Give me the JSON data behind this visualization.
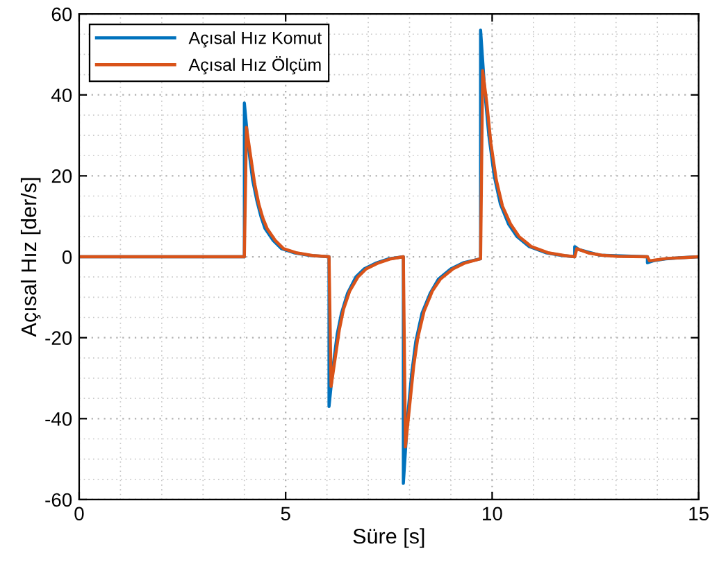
{
  "chart_data": {
    "type": "line",
    "xlabel": "Süre [s]",
    "ylabel": "Açısal Hız [der/s]",
    "xlim": [
      0,
      15
    ],
    "ylim": [
      -60,
      60
    ],
    "xticks": [
      0,
      5,
      10,
      15
    ],
    "yticks": [
      -60,
      -40,
      -20,
      0,
      20,
      40,
      60
    ],
    "grid": true,
    "legend": "top left",
    "line_style": "solid",
    "marker": "none",
    "series": [
      {
        "name": "Açısal Hız Komut",
        "color": "#0072bd",
        "x": [
          0,
          4.0,
          4.0,
          4.1,
          4.2,
          4.3,
          4.4,
          4.5,
          4.7,
          4.9,
          5.2,
          5.6,
          6.05,
          6.05,
          6.15,
          6.25,
          6.35,
          6.5,
          6.7,
          6.9,
          7.2,
          7.5,
          7.85,
          7.85,
          7.95,
          8.05,
          8.15,
          8.3,
          8.5,
          8.7,
          9.0,
          9.3,
          9.72,
          9.72,
          9.82,
          9.92,
          10.05,
          10.2,
          10.4,
          10.6,
          10.9,
          11.3,
          11.7,
          12.0,
          12.0,
          12.1,
          12.6,
          13.76,
          13.76,
          13.9,
          14.2,
          14.6,
          15
        ],
        "values": [
          0,
          0,
          38,
          27,
          19,
          14,
          10,
          7,
          4,
          2,
          1,
          0.3,
          0,
          -37,
          -27,
          -19,
          -14,
          -9,
          -5,
          -3,
          -1.5,
          -0.5,
          0,
          -56,
          -40,
          -29,
          -21,
          -14,
          -9,
          -5.5,
          -3,
          -1.5,
          -0.5,
          56,
          41,
          30,
          20,
          13,
          8,
          5,
          2.5,
          1,
          0.3,
          0,
          2.5,
          1.8,
          0.4,
          0,
          -1.5,
          -1,
          -0.5,
          -0.2,
          0
        ]
      },
      {
        "name": "Açısal Hız Ölçüm",
        "color": "#d95319",
        "x": [
          0,
          4.0,
          4.05,
          4.15,
          4.25,
          4.35,
          4.45,
          4.55,
          4.75,
          4.95,
          5.25,
          5.65,
          6.05,
          6.1,
          6.2,
          6.3,
          6.4,
          6.55,
          6.75,
          6.95,
          7.25,
          7.55,
          7.85,
          7.9,
          8.0,
          8.1,
          8.2,
          8.35,
          8.55,
          8.75,
          9.05,
          9.35,
          9.72,
          9.77,
          9.87,
          9.97,
          10.1,
          10.25,
          10.45,
          10.65,
          10.95,
          11.35,
          11.75,
          12.0,
          12.05,
          12.15,
          12.35,
          12.65,
          13.05,
          13.76,
          13.81,
          13.95,
          14.25,
          14.65,
          15
        ],
        "values": [
          0,
          0,
          32,
          25,
          18,
          13,
          9.5,
          7,
          4,
          2,
          1,
          0.3,
          0,
          -32,
          -25,
          -18,
          -13,
          -8.5,
          -5,
          -3,
          -1.5,
          -0.5,
          0,
          -47,
          -37,
          -27,
          -20,
          -13.5,
          -8.5,
          -5.5,
          -3,
          -1.5,
          -0.5,
          46,
          38,
          28,
          19,
          12.5,
          8,
          5,
          2.5,
          1,
          0.3,
          0,
          2,
          1.6,
          0.9,
          0.4,
          0.1,
          0,
          -1,
          -0.8,
          -0.4,
          -0.2,
          0
        ]
      }
    ]
  }
}
